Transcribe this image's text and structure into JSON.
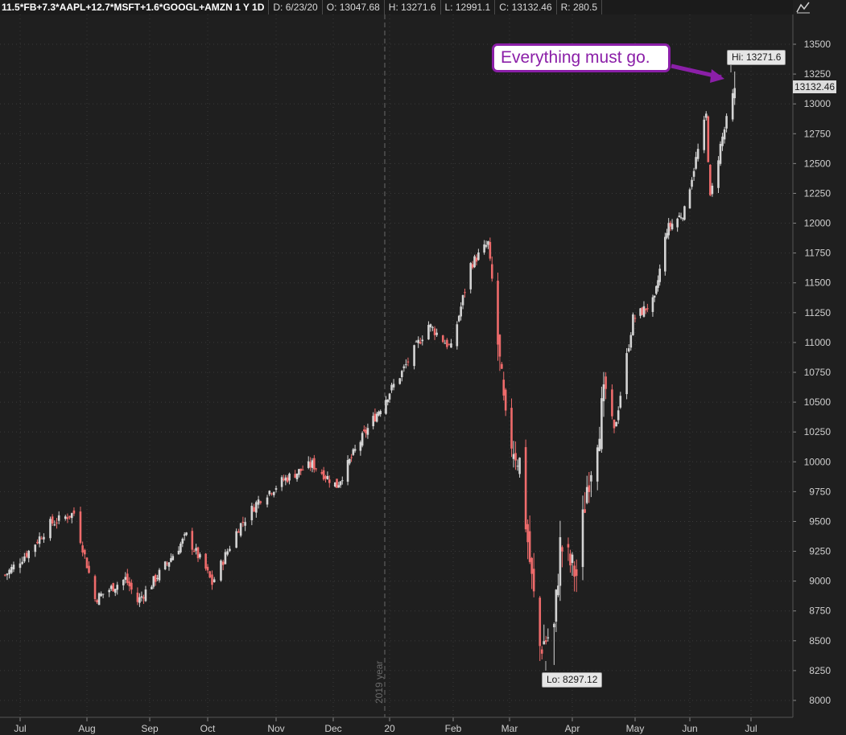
{
  "header": {
    "symbol": "11.5*FB+7.3*AAPL+12.7*MSFT+1.6*GOOGL+AMZN 1 Y 1D",
    "date": "D: 6/23/20",
    "open": "O: 13047.68",
    "high": "H: 13271.6",
    "low": "L: 12991.1",
    "close": "C: 13132.46",
    "range": "R: 280.5"
  },
  "annotation": {
    "text": "Everything must go.",
    "color": "#8b1fa8"
  },
  "markers": {
    "hi_label": "Hi: 13271.6",
    "lo_label": "Lo: 8297.12",
    "last_price": "13132.46"
  },
  "colors": {
    "background": "#1f1f1f",
    "up": "#d4d4d4",
    "down": "#ef6b6b",
    "grid": "#3a3a3a"
  },
  "chart_data": {
    "type": "candlestick",
    "x_tick_labels": [
      "Jul",
      "Aug",
      "Sep",
      "Oct",
      "Nov",
      "Dec",
      "20",
      "Feb",
      "Mar",
      "Apr",
      "May",
      "Jun",
      "Jul"
    ],
    "year_separator_label": "2019 year",
    "y_ticks": [
      8000,
      8250,
      8500,
      8750,
      9000,
      9250,
      9500,
      9750,
      10000,
      10250,
      10500,
      10750,
      11000,
      11250,
      11500,
      11750,
      12000,
      12250,
      12500,
      12750,
      13000,
      13250,
      13500
    ],
    "ylim": [
      7900,
      13600
    ],
    "grid": true,
    "high": 13271.6,
    "low": 8297.12,
    "last": 13132.46,
    "close_path": [
      [
        "2019-06-24",
        9050
      ],
      [
        "2019-07-05",
        9250
      ],
      [
        "2019-07-15",
        9480
      ],
      [
        "2019-07-26",
        9570
      ],
      [
        "2019-08-05",
        8850
      ],
      [
        "2019-08-20",
        9020
      ],
      [
        "2019-08-26",
        8830
      ],
      [
        "2019-09-10",
        9150
      ],
      [
        "2019-09-20",
        9380
      ],
      [
        "2019-09-30",
        9100
      ],
      [
        "2019-10-03",
        8980
      ],
      [
        "2019-10-15",
        9450
      ],
      [
        "2019-10-25",
        9700
      ],
      [
        "2019-11-05",
        9850
      ],
      [
        "2019-11-20",
        9980
      ],
      [
        "2019-12-03",
        9800
      ],
      [
        "2019-12-15",
        10150
      ],
      [
        "2019-12-31",
        10560
      ],
      [
        "2020-01-07",
        10750
      ],
      [
        "2020-01-20",
        11150
      ],
      [
        "2020-01-31",
        10950
      ],
      [
        "2020-02-10",
        11650
      ],
      [
        "2020-02-19",
        11830
      ],
      [
        "2020-02-21",
        11500
      ],
      [
        "2020-02-28",
        10300
      ],
      [
        "2020-03-06",
        10000
      ],
      [
        "2020-03-12",
        9000
      ],
      [
        "2020-03-16",
        8450
      ],
      [
        "2020-03-23",
        8600
      ],
      [
        "2020-03-26",
        9300
      ],
      [
        "2020-04-03",
        9050
      ],
      [
        "2020-04-08",
        9800
      ],
      [
        "2020-04-17",
        10600
      ],
      [
        "2020-04-21",
        10250
      ],
      [
        "2020-04-30",
        11200
      ],
      [
        "2020-05-12",
        11350
      ],
      [
        "2020-05-19",
        11950
      ],
      [
        "2020-05-29",
        12100
      ],
      [
        "2020-06-09",
        12900
      ],
      [
        "2020-06-11",
        12200
      ],
      [
        "2020-06-16",
        12650
      ],
      [
        "2020-06-23",
        13132
      ]
    ]
  }
}
